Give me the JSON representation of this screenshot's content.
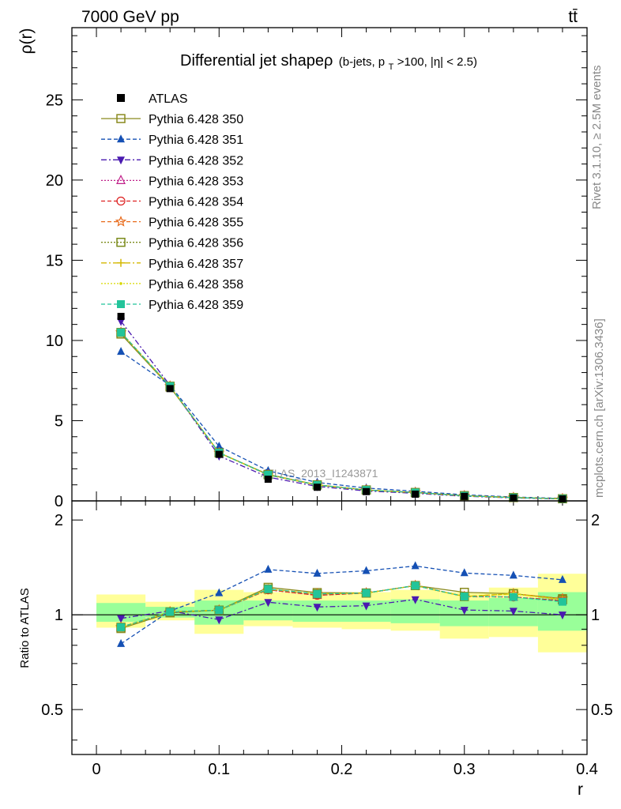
{
  "header": {
    "left": "7000 GeV pp",
    "right": "tt̄"
  },
  "side_labels": {
    "rivet": "Rivet 3.1.10, ≥ 2.5M events",
    "mcplots": "mcplots.cern.ch [arXiv:1306.3436]"
  },
  "chart_data": {
    "type": "line",
    "title": "Differential jet shapeρ (b-jets, p_T>100, |η| < 2.5)",
    "title_main": "Differential jet shapeρ",
    "title_paren_a": "(b-jets, p",
    "title_paren_sub": "T",
    "title_paren_b": ">100, |η| < 2.5)",
    "watermark": "ATLAS_2013_I1243871",
    "xlabel": "r",
    "ylabel": "ρ(r)",
    "ratio_ylabel": "Ratio to ATLAS",
    "xlim": [
      -0.02,
      0.4
    ],
    "ylim": [
      0,
      29.5
    ],
    "ratio_ylim": [
      0.36,
      2.3
    ],
    "x_ticks": [
      "0",
      "0.1",
      "0.2",
      "0.3",
      "0.4"
    ],
    "y_ticks": [
      "0",
      "5",
      "10",
      "15",
      "20",
      "25"
    ],
    "ratio_y_ticks": [
      "0.5",
      "1",
      "2"
    ],
    "legend_position": "top-left",
    "x": [
      0.02,
      0.06,
      0.1,
      0.14,
      0.18,
      0.22,
      0.26,
      0.3,
      0.34,
      0.38
    ],
    "bin_edges": [
      0.0,
      0.04,
      0.08,
      0.12,
      0.16,
      0.2,
      0.24,
      0.28,
      0.32,
      0.36,
      0.4
    ],
    "data": {
      "name": "ATLAS",
      "values": [
        11.5,
        7.0,
        2.9,
        1.35,
        0.85,
        0.58,
        0.42,
        0.28,
        0.18,
        0.12
      ]
    },
    "band_yellow": [
      [
        0.91,
        1.16
      ],
      [
        0.96,
        1.1
      ],
      [
        0.87,
        1.2
      ],
      [
        0.92,
        1.18
      ],
      [
        0.91,
        1.18
      ],
      [
        0.9,
        1.18
      ],
      [
        0.89,
        1.2
      ],
      [
        0.84,
        1.18
      ],
      [
        0.85,
        1.22
      ],
      [
        0.76,
        1.35
      ]
    ],
    "band_green": [
      [
        0.95,
        1.09
      ],
      [
        0.98,
        1.06
      ],
      [
        0.93,
        1.11
      ],
      [
        0.96,
        1.11
      ],
      [
        0.95,
        1.11
      ],
      [
        0.95,
        1.11
      ],
      [
        0.94,
        1.12
      ],
      [
        0.92,
        1.11
      ],
      [
        0.92,
        1.13
      ],
      [
        0.89,
        1.18
      ]
    ],
    "series": [
      {
        "name": "Pythia 6.428 350",
        "color": "#8a8a1f",
        "marker": "square-open",
        "dash": "",
        "values": [
          10.4,
          7.1,
          3.0,
          1.65,
          1.0,
          0.68,
          0.52,
          0.33,
          0.21,
          0.135
        ]
      },
      {
        "name": "Pythia 6.428 351",
        "color": "#1550b4",
        "marker": "triangle",
        "dash": "5,3",
        "values": [
          9.3,
          7.2,
          3.4,
          1.88,
          1.15,
          0.8,
          0.6,
          0.38,
          0.24,
          0.155
        ]
      },
      {
        "name": "Pythia 6.428 352",
        "color": "#4a1ab0",
        "marker": "triangle-down",
        "dash": "7,3,2,3",
        "values": [
          11.2,
          7.2,
          2.8,
          1.48,
          0.9,
          0.62,
          0.47,
          0.29,
          0.185,
          0.12
        ]
      },
      {
        "name": "Pythia 6.428 353",
        "color": "#c0208a",
        "marker": "triangle-open",
        "dash": "2,2",
        "values": [
          10.5,
          7.15,
          3.0,
          1.62,
          0.98,
          0.68,
          0.52,
          0.32,
          0.205,
          0.133
        ]
      },
      {
        "name": "Pythia 6.428 354",
        "color": "#dd2020",
        "marker": "circle-open",
        "dash": "5,3",
        "values": [
          10.5,
          7.15,
          3.0,
          1.62,
          0.98,
          0.68,
          0.52,
          0.32,
          0.205,
          0.133
        ]
      },
      {
        "name": "Pythia 6.428 355",
        "color": "#e86a1a",
        "marker": "star-open",
        "dash": "5,3",
        "values": [
          10.5,
          7.15,
          3.0,
          1.62,
          0.99,
          0.68,
          0.52,
          0.32,
          0.21,
          0.135
        ]
      },
      {
        "name": "Pythia 6.428 356",
        "color": "#7a8a1a",
        "marker": "square-open",
        "dash": "2,2",
        "values": [
          10.5,
          7.15,
          3.0,
          1.63,
          0.99,
          0.68,
          0.52,
          0.32,
          0.21,
          0.134
        ]
      },
      {
        "name": "Pythia 6.428 357",
        "color": "#d4b800",
        "marker": "cross",
        "dash": "7,3,2,3",
        "values": [
          10.5,
          7.15,
          3.0,
          1.63,
          0.99,
          0.68,
          0.52,
          0.32,
          0.21,
          0.134
        ]
      },
      {
        "name": "Pythia 6.428 358",
        "color": "#d8d800",
        "marker": "dot",
        "dash": "2,2",
        "values": [
          10.5,
          7.15,
          3.0,
          1.63,
          0.99,
          0.68,
          0.52,
          0.32,
          0.21,
          0.134
        ]
      },
      {
        "name": "Pythia 6.428 359",
        "color": "#22c49a",
        "marker": "square",
        "dash": "5,3",
        "values": [
          10.5,
          7.15,
          3.0,
          1.63,
          0.99,
          0.68,
          0.52,
          0.32,
          0.205,
          0.132
        ]
      }
    ]
  }
}
